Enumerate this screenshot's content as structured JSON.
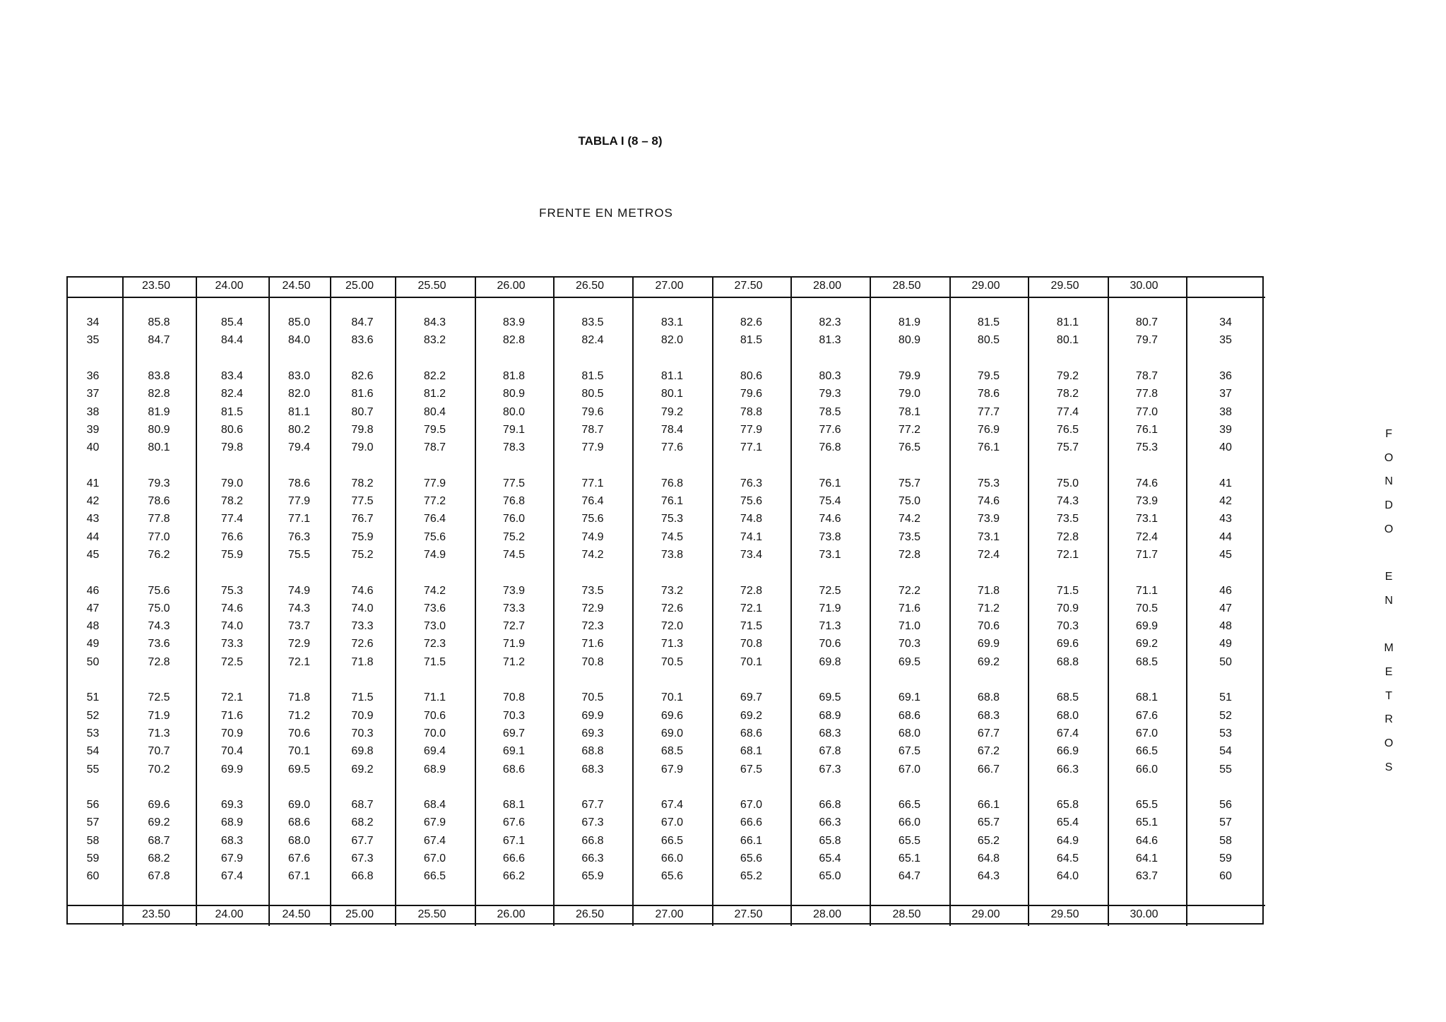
{
  "title": "TABLA  I (8 – 8)",
  "subtitle": "FRENTE  EN  METROS",
  "side_label": [
    "F",
    "O",
    "N",
    "D",
    "O",
    "",
    "E",
    "N",
    "",
    "M",
    "E",
    "T",
    "R",
    "O",
    "S"
  ],
  "columns": [
    "23.50",
    "24.00",
    "24.50",
    "25.00",
    "25.50",
    "26.00",
    "26.50",
    "27.00",
    "27.50",
    "28.00",
    "28.50",
    "29.00",
    "29.50",
    "30.00"
  ],
  "groups": [
    [
      {
        "fondo": "34",
        "values": [
          "85.8",
          "85.4",
          "85.0",
          "84.7",
          "84.3",
          "83.9",
          "83.5",
          "83.1",
          "82.6",
          "82.3",
          "81.9",
          "81.5",
          "81.1",
          "80.7"
        ]
      },
      {
        "fondo": "35",
        "values": [
          "84.7",
          "84.4",
          "84.0",
          "83.6",
          "83.2",
          "82.8",
          "82.4",
          "82.0",
          "81.5",
          "81.3",
          "80.9",
          "80.5",
          "80.1",
          "79.7"
        ]
      }
    ],
    [
      {
        "fondo": "36",
        "values": [
          "83.8",
          "83.4",
          "83.0",
          "82.6",
          "82.2",
          "81.8",
          "81.5",
          "81.1",
          "80.6",
          "80.3",
          "79.9",
          "79.5",
          "79.2",
          "78.7"
        ]
      },
      {
        "fondo": "37",
        "values": [
          "82.8",
          "82.4",
          "82.0",
          "81.6",
          "81.2",
          "80.9",
          "80.5",
          "80.1",
          "79.6",
          "79.3",
          "79.0",
          "78.6",
          "78.2",
          "77.8"
        ]
      },
      {
        "fondo": "38",
        "values": [
          "81.9",
          "81.5",
          "81.1",
          "80.7",
          "80.4",
          "80.0",
          "79.6",
          "79.2",
          "78.8",
          "78.5",
          "78.1",
          "77.7",
          "77.4",
          "77.0"
        ]
      },
      {
        "fondo": "39",
        "values": [
          "80.9",
          "80.6",
          "80.2",
          "79.8",
          "79.5",
          "79.1",
          "78.7",
          "78.4",
          "77.9",
          "77.6",
          "77.2",
          "76.9",
          "76.5",
          "76.1"
        ]
      },
      {
        "fondo": "40",
        "values": [
          "80.1",
          "79.8",
          "79.4",
          "79.0",
          "78.7",
          "78.3",
          "77.9",
          "77.6",
          "77.1",
          "76.8",
          "76.5",
          "76.1",
          "75.7",
          "75.3"
        ]
      }
    ],
    [
      {
        "fondo": "41",
        "values": [
          "79.3",
          "79.0",
          "78.6",
          "78.2",
          "77.9",
          "77.5",
          "77.1",
          "76.8",
          "76.3",
          "76.1",
          "75.7",
          "75.3",
          "75.0",
          "74.6"
        ]
      },
      {
        "fondo": "42",
        "values": [
          "78.6",
          "78.2",
          "77.9",
          "77.5",
          "77.2",
          "76.8",
          "76.4",
          "76.1",
          "75.6",
          "75.4",
          "75.0",
          "74.6",
          "74.3",
          "73.9"
        ]
      },
      {
        "fondo": "43",
        "values": [
          "77.8",
          "77.4",
          "77.1",
          "76.7",
          "76.4",
          "76.0",
          "75.6",
          "75.3",
          "74.8",
          "74.6",
          "74.2",
          "73.9",
          "73.5",
          "73.1"
        ]
      },
      {
        "fondo": "44",
        "values": [
          "77.0",
          "76.6",
          "76.3",
          "75.9",
          "75.6",
          "75.2",
          "74.9",
          "74.5",
          "74.1",
          "73.8",
          "73.5",
          "73.1",
          "72.8",
          "72.4"
        ]
      },
      {
        "fondo": "45",
        "values": [
          "76.2",
          "75.9",
          "75.5",
          "75.2",
          "74.9",
          "74.5",
          "74.2",
          "73.8",
          "73.4",
          "73.1",
          "72.8",
          "72.4",
          "72.1",
          "71.7"
        ]
      }
    ],
    [
      {
        "fondo": "46",
        "values": [
          "75.6",
          "75.3",
          "74.9",
          "74.6",
          "74.2",
          "73.9",
          "73.5",
          "73.2",
          "72.8",
          "72.5",
          "72.2",
          "71.8",
          "71.5",
          "71.1"
        ]
      },
      {
        "fondo": "47",
        "values": [
          "75.0",
          "74.6",
          "74.3",
          "74.0",
          "73.6",
          "73.3",
          "72.9",
          "72.6",
          "72.1",
          "71.9",
          "71.6",
          "71.2",
          "70.9",
          "70.5"
        ]
      },
      {
        "fondo": "48",
        "values": [
          "74.3",
          "74.0",
          "73.7",
          "73.3",
          "73.0",
          "72.7",
          "72.3",
          "72.0",
          "71.5",
          "71.3",
          "71.0",
          "70.6",
          "70.3",
          "69.9"
        ]
      },
      {
        "fondo": "49",
        "values": [
          "73.6",
          "73.3",
          "72.9",
          "72.6",
          "72.3",
          "71.9",
          "71.6",
          "71.3",
          "70.8",
          "70.6",
          "70.3",
          "69.9",
          "69.6",
          "69.2"
        ]
      },
      {
        "fondo": "50",
        "values": [
          "72.8",
          "72.5",
          "72.1",
          "71.8",
          "71.5",
          "71.2",
          "70.8",
          "70.5",
          "70.1",
          "69.8",
          "69.5",
          "69.2",
          "68.8",
          "68.5"
        ]
      }
    ],
    [
      {
        "fondo": "51",
        "values": [
          "72.5",
          "72.1",
          "71.8",
          "71.5",
          "71.1",
          "70.8",
          "70.5",
          "70.1",
          "69.7",
          "69.5",
          "69.1",
          "68.8",
          "68.5",
          "68.1"
        ]
      },
      {
        "fondo": "52",
        "values": [
          "71.9",
          "71.6",
          "71.2",
          "70.9",
          "70.6",
          "70.3",
          "69.9",
          "69.6",
          "69.2",
          "68.9",
          "68.6",
          "68.3",
          "68.0",
          "67.6"
        ]
      },
      {
        "fondo": "53",
        "values": [
          "71.3",
          "70.9",
          "70.6",
          "70.3",
          "70.0",
          "69.7",
          "69.3",
          "69.0",
          "68.6",
          "68.3",
          "68.0",
          "67.7",
          "67.4",
          "67.0"
        ]
      },
      {
        "fondo": "54",
        "values": [
          "70.7",
          "70.4",
          "70.1",
          "69.8",
          "69.4",
          "69.1",
          "68.8",
          "68.5",
          "68.1",
          "67.8",
          "67.5",
          "67.2",
          "66.9",
          "66.5"
        ]
      },
      {
        "fondo": "55",
        "values": [
          "70.2",
          "69.9",
          "69.5",
          "69.2",
          "68.9",
          "68.6",
          "68.3",
          "67.9",
          "67.5",
          "67.3",
          "67.0",
          "66.7",
          "66.3",
          "66.0"
        ]
      }
    ],
    [
      {
        "fondo": "56",
        "values": [
          "69.6",
          "69.3",
          "69.0",
          "68.7",
          "68.4",
          "68.1",
          "67.7",
          "67.4",
          "67.0",
          "66.8",
          "66.5",
          "66.1",
          "65.8",
          "65.5"
        ]
      },
      {
        "fondo": "57",
        "values": [
          "69.2",
          "68.9",
          "68.6",
          "68.2",
          "67.9",
          "67.6",
          "67.3",
          "67.0",
          "66.6",
          "66.3",
          "66.0",
          "65.7",
          "65.4",
          "65.1"
        ]
      },
      {
        "fondo": "58",
        "values": [
          "68.7",
          "68.3",
          "68.0",
          "67.7",
          "67.4",
          "67.1",
          "66.8",
          "66.5",
          "66.1",
          "65.8",
          "65.5",
          "65.2",
          "64.9",
          "64.6"
        ]
      },
      {
        "fondo": "59",
        "values": [
          "68.2",
          "67.9",
          "67.6",
          "67.3",
          "67.0",
          "66.6",
          "66.3",
          "66.0",
          "65.6",
          "65.4",
          "65.1",
          "64.8",
          "64.5",
          "64.1"
        ]
      },
      {
        "fondo": "60",
        "values": [
          "67.8",
          "67.4",
          "67.1",
          "66.8",
          "66.5",
          "66.2",
          "65.9",
          "65.6",
          "65.2",
          "65.0",
          "64.7",
          "64.3",
          "64.0",
          "63.7"
        ]
      }
    ]
  ]
}
